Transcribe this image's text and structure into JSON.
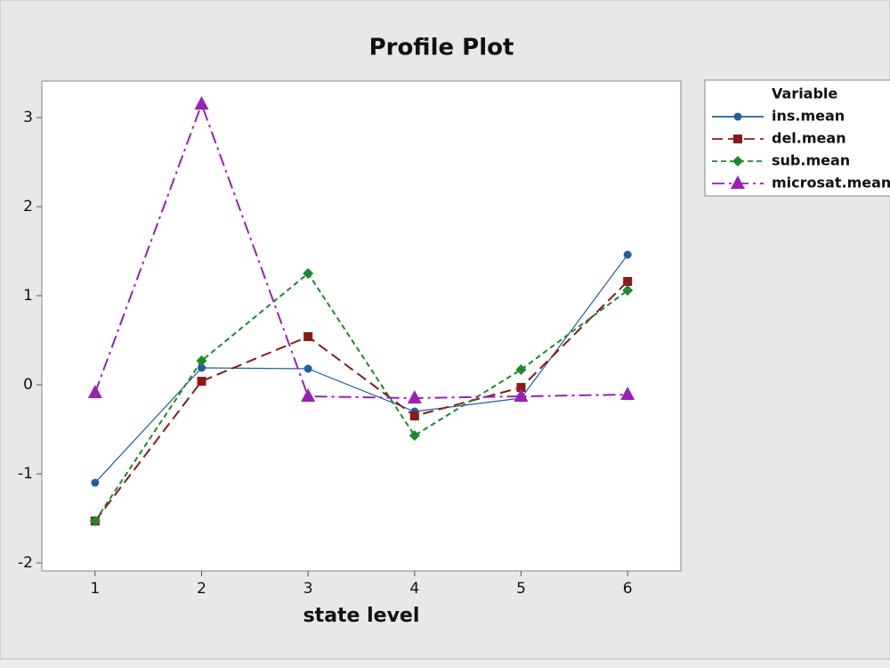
{
  "chart_data": {
    "type": "line",
    "title": "Profile Plot",
    "x_label": "state level",
    "x": [
      1,
      2,
      3,
      4,
      5,
      6
    ],
    "xlim": [
      0.5,
      6.5
    ],
    "xticks": [
      1,
      2,
      3,
      4,
      5,
      6
    ],
    "ylim": [
      -2.09,
      3.41
    ],
    "yticks": [
      -2,
      -1,
      0,
      1,
      2,
      3
    ],
    "legend_title": "Variable",
    "legend_position": "right",
    "series": [
      {
        "name": "ins.mean",
        "color": "#1f5fa0",
        "line_style": "solid",
        "marker": "circle",
        "values": [
          -1.1,
          0.19,
          0.18,
          -0.3,
          -0.15,
          1.46
        ]
      },
      {
        "name": "del.mean",
        "color": "#8b1a1a",
        "line_style": "dashed",
        "marker": "square",
        "values": [
          -1.53,
          0.04,
          0.54,
          -0.35,
          -0.03,
          1.16
        ]
      },
      {
        "name": "sub.mean",
        "color": "#1a8a2a",
        "line_style": "dotted",
        "marker": "diamond",
        "values": [
          -1.53,
          0.27,
          1.25,
          -0.57,
          0.17,
          1.06
        ]
      },
      {
        "name": "microsat.mean",
        "color": "#9a1fb5",
        "line_style": "dashdot",
        "marker": "triangle",
        "values": [
          -0.09,
          3.15,
          -0.13,
          -0.15,
          -0.13,
          -0.11
        ]
      }
    ]
  }
}
